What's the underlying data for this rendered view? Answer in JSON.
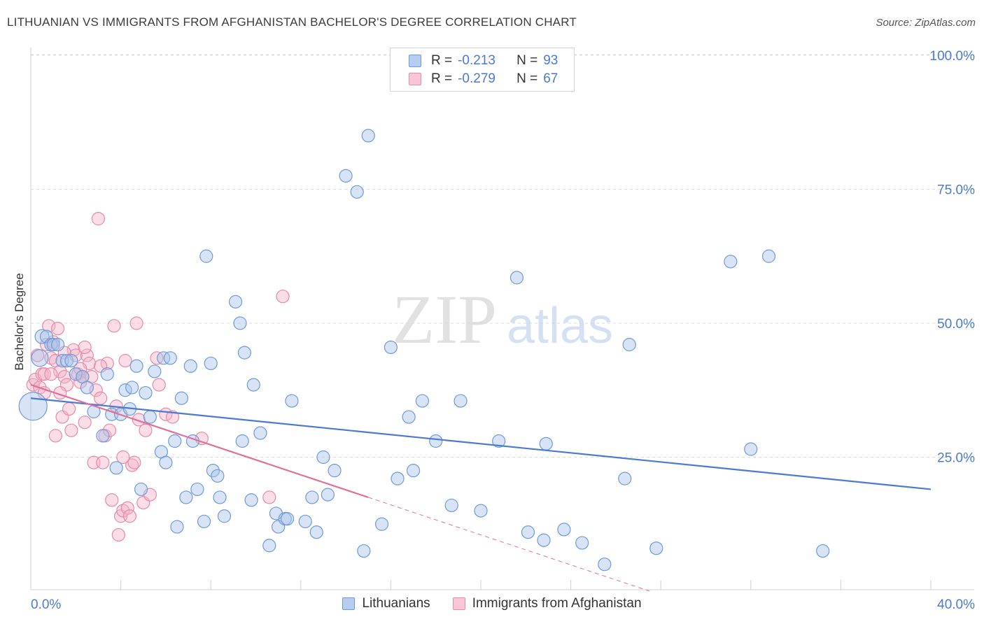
{
  "title": "LITHUANIAN VS IMMIGRANTS FROM AFGHANISTAN BACHELOR'S DEGREE CORRELATION CHART",
  "source": "Source: ZipAtlas.com",
  "watermark": {
    "part1": "ZIP",
    "part2": "atlas"
  },
  "legend": [
    {
      "r_label": "R =",
      "r_value": "-0.213",
      "n_label": "N =",
      "n_value": "93"
    },
    {
      "r_label": "R =",
      "r_value": "-0.279",
      "n_label": "N =",
      "n_value": "67"
    }
  ],
  "colors": {
    "blue": "#4a7bd0",
    "blue_fill": "#a9c4ec",
    "blue_stroke": "#6f9ad8",
    "pink": "#e0709a",
    "pink_fill": "#f4b4c8",
    "pink_stroke": "#e68aa9",
    "grid": "#dcdcdc"
  },
  "chart_data": {
    "type": "scatter",
    "title": "LITHUANIAN VS IMMIGRANTS FROM AFGHANISTAN BACHELOR'S DEGREE CORRELATION CHART",
    "xlabel": "",
    "ylabel": "Bachelor's Degree",
    "xlim": [
      0,
      40
    ],
    "ylim": [
      0,
      100
    ],
    "x_tick_labels": [
      "0.0%",
      "40.0%"
    ],
    "y_tick_labels": [
      "100.0%",
      "75.0%",
      "50.0%",
      "25.0%"
    ],
    "y_ticks": [
      100,
      75,
      50,
      25
    ],
    "series": [
      {
        "name": "Lithuanians",
        "color": "#4a7bd0",
        "r": -0.213,
        "n": 93,
        "trend": {
          "x0": 0,
          "y0": 36,
          "x1": 40,
          "y1": 19
        },
        "points": [
          [
            0.1,
            34.5,
            20
          ],
          [
            0.4,
            43.5,
            12
          ],
          [
            0.5,
            47.5,
            10
          ],
          [
            0.7,
            47.5,
            9
          ],
          [
            0.9,
            46.0,
            9
          ],
          [
            1.0,
            46.0,
            9
          ],
          [
            1.2,
            46.0,
            9
          ],
          [
            1.4,
            43.0,
            9
          ],
          [
            1.6,
            43.0,
            9
          ],
          [
            1.8,
            43.0,
            9
          ],
          [
            2.0,
            40.5,
            9
          ],
          [
            2.3,
            40.0,
            9
          ],
          [
            2.5,
            38.0,
            9
          ],
          [
            2.8,
            33.5,
            9
          ],
          [
            3.2,
            29.0,
            9
          ],
          [
            3.4,
            40.5,
            9
          ],
          [
            3.6,
            33.0,
            9
          ],
          [
            3.8,
            23.0,
            9
          ],
          [
            4.0,
            33.0,
            9
          ],
          [
            4.2,
            37.5,
            9
          ],
          [
            4.4,
            34.0,
            9
          ],
          [
            4.5,
            38.0,
            9
          ],
          [
            4.7,
            42.0,
            9
          ],
          [
            4.9,
            19.0,
            9
          ],
          [
            5.1,
            37.0,
            9
          ],
          [
            5.3,
            32.5,
            9
          ],
          [
            5.5,
            41.0,
            9
          ],
          [
            5.8,
            26.0,
            9
          ],
          [
            5.9,
            43.5,
            9
          ],
          [
            6.0,
            24.0,
            9
          ],
          [
            6.2,
            43.5,
            9
          ],
          [
            6.4,
            28.0,
            9
          ],
          [
            6.5,
            12.0,
            9
          ],
          [
            6.7,
            36.0,
            9
          ],
          [
            6.9,
            17.5,
            9
          ],
          [
            7.1,
            42.0,
            9
          ],
          [
            7.2,
            28.0,
            9
          ],
          [
            7.4,
            19.0,
            9
          ],
          [
            7.7,
            13.0,
            9
          ],
          [
            7.8,
            62.5,
            9
          ],
          [
            8.0,
            42.5,
            9
          ],
          [
            8.1,
            22.5,
            9
          ],
          [
            8.3,
            21.5,
            9
          ],
          [
            8.4,
            17.5,
            9
          ],
          [
            8.6,
            14.0,
            9
          ],
          [
            9.1,
            54.0,
            9
          ],
          [
            9.3,
            50.0,
            9
          ],
          [
            9.4,
            28.0,
            9
          ],
          [
            9.5,
            44.5,
            9
          ],
          [
            9.8,
            17.0,
            9
          ],
          [
            9.9,
            38.5,
            9
          ],
          [
            10.2,
            29.5,
            9
          ],
          [
            10.6,
            8.5,
            9
          ],
          [
            10.9,
            14.5,
            9
          ],
          [
            11.0,
            12.0,
            9
          ],
          [
            11.3,
            13.5,
            9
          ],
          [
            11.4,
            13.5,
            9
          ],
          [
            11.6,
            35.5,
            9
          ],
          [
            12.2,
            13.0,
            9
          ],
          [
            12.5,
            17.5,
            9
          ],
          [
            12.7,
            11.0,
            9
          ],
          [
            13.0,
            25.0,
            9
          ],
          [
            13.2,
            18.0,
            9
          ],
          [
            13.5,
            22.5,
            9
          ],
          [
            14.0,
            77.5,
            9
          ],
          [
            14.5,
            74.5,
            9
          ],
          [
            14.8,
            7.5,
            9
          ],
          [
            15.0,
            85.0,
            9
          ],
          [
            15.6,
            12.5,
            9
          ],
          [
            16.0,
            45.5,
            9
          ],
          [
            16.3,
            21.0,
            9
          ],
          [
            16.8,
            32.5,
            9
          ],
          [
            17.0,
            22.5,
            9
          ],
          [
            17.4,
            35.5,
            9
          ],
          [
            18.0,
            28.0,
            9
          ],
          [
            18.7,
            16.0,
            9
          ],
          [
            19.1,
            35.5,
            9
          ],
          [
            20.0,
            15.0,
            9
          ],
          [
            20.8,
            28.0,
            9
          ],
          [
            21.6,
            58.5,
            9
          ],
          [
            22.1,
            11.0,
            9
          ],
          [
            22.8,
            9.5,
            9
          ],
          [
            22.9,
            27.5,
            9
          ],
          [
            23.7,
            11.5,
            9
          ],
          [
            24.5,
            9.0,
            9
          ],
          [
            25.5,
            5.0,
            9
          ],
          [
            26.4,
            21.0,
            9
          ],
          [
            26.6,
            46.0,
            9
          ],
          [
            27.8,
            8.0,
            9
          ],
          [
            31.1,
            61.5,
            9
          ],
          [
            32.0,
            26.5,
            9
          ],
          [
            32.8,
            62.5,
            9
          ],
          [
            35.2,
            7.5,
            9
          ]
        ]
      },
      {
        "name": "Immigrants from Afghanistan",
        "color": "#e0709a",
        "r": -0.279,
        "n": 67,
        "trend": {
          "x0": 0,
          "y0": 38.5,
          "x1": 15,
          "y1": 17.5,
          "dash_x1": 27.5,
          "dash_y1": 0
        },
        "points": [
          [
            0.1,
            38.5,
            9
          ],
          [
            0.2,
            39.5,
            9
          ],
          [
            0.3,
            44.0,
            9
          ],
          [
            0.4,
            38.0,
            9
          ],
          [
            0.5,
            40.5,
            9
          ],
          [
            0.6,
            40.5,
            9
          ],
          [
            0.7,
            46.0,
            9
          ],
          [
            0.8,
            49.5,
            9
          ],
          [
            0.9,
            43.5,
            9
          ],
          [
            1.0,
            46.5,
            9
          ],
          [
            1.1,
            29.0,
            9
          ],
          [
            1.1,
            43.0,
            9
          ],
          [
            1.2,
            49.0,
            9
          ],
          [
            1.3,
            41.0,
            9
          ],
          [
            1.4,
            32.5,
            9
          ],
          [
            1.5,
            40.0,
            9
          ],
          [
            1.6,
            38.5,
            9
          ],
          [
            1.7,
            34.0,
            9
          ],
          [
            1.8,
            30.0,
            9
          ],
          [
            1.9,
            45.0,
            9
          ],
          [
            2.0,
            44.0,
            9
          ],
          [
            2.1,
            40.5,
            9
          ],
          [
            2.2,
            39.0,
            9
          ],
          [
            2.3,
            40.0,
            9
          ],
          [
            2.4,
            31.5,
            9
          ],
          [
            2.5,
            44.0,
            9
          ],
          [
            2.6,
            42.5,
            9
          ],
          [
            2.7,
            40.0,
            9
          ],
          [
            2.8,
            24.0,
            9
          ],
          [
            2.9,
            37.5,
            9
          ],
          [
            3.0,
            69.5,
            9
          ],
          [
            3.1,
            36.0,
            9
          ],
          [
            3.2,
            24.0,
            9
          ],
          [
            3.3,
            29.0,
            9
          ],
          [
            3.4,
            42.5,
            9
          ],
          [
            3.5,
            30.0,
            9
          ],
          [
            3.6,
            17.0,
            9
          ],
          [
            3.7,
            49.5,
            9
          ],
          [
            3.8,
            34.5,
            9
          ],
          [
            3.9,
            10.5,
            9
          ],
          [
            4.0,
            14.0,
            9
          ],
          [
            4.1,
            15.0,
            9
          ],
          [
            4.2,
            43.0,
            9
          ],
          [
            4.3,
            15.5,
            9
          ],
          [
            4.4,
            14.0,
            9
          ],
          [
            4.5,
            23.5,
            9
          ],
          [
            4.6,
            24.0,
            9
          ],
          [
            4.7,
            50.0,
            9
          ],
          [
            4.8,
            32.0,
            9
          ],
          [
            5.0,
            16.5,
            9
          ],
          [
            5.1,
            30.0,
            9
          ],
          [
            5.3,
            18.0,
            9
          ],
          [
            5.6,
            43.5,
            9
          ],
          [
            5.7,
            38.5,
            9
          ],
          [
            6.0,
            33.0,
            9
          ],
          [
            6.3,
            32.5,
            9
          ],
          [
            7.6,
            28.5,
            9
          ],
          [
            10.6,
            17.5,
            9
          ],
          [
            11.2,
            55.0,
            9
          ],
          [
            2.2,
            41.5,
            9
          ],
          [
            1.5,
            44.5,
            9
          ],
          [
            0.9,
            40.5,
            9
          ],
          [
            2.4,
            45.5,
            9
          ],
          [
            3.1,
            42.0,
            9
          ],
          [
            1.3,
            37.0,
            9
          ],
          [
            0.6,
            37.0,
            9
          ],
          [
            4.1,
            25.0,
            9
          ]
        ]
      }
    ]
  },
  "bottom_legend": [
    "Lithuanians",
    "Immigrants from Afghanistan"
  ]
}
